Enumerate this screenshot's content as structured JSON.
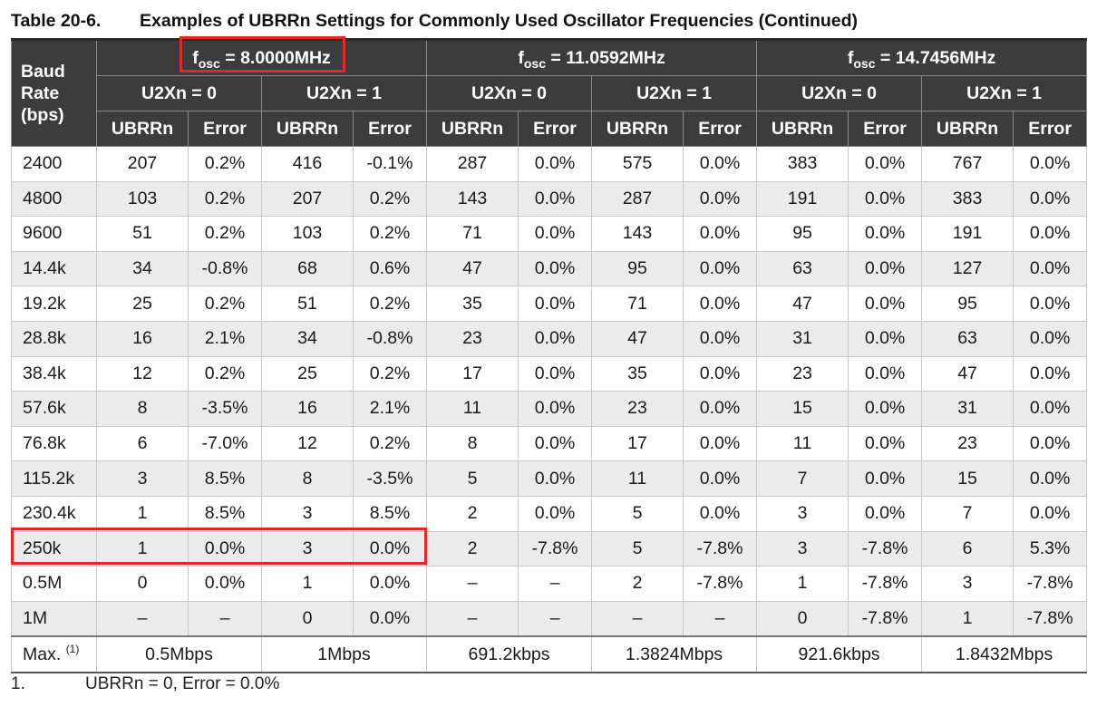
{
  "caption": {
    "number": "Table 20-6.",
    "title": "Examples of UBRRn Settings for Commonly Used Oscillator Frequencies (Continued)"
  },
  "header": {
    "baud_label": [
      "Baud",
      "Rate",
      "(bps)"
    ],
    "freqs": [
      {
        "prefix": "f",
        "sub": "osc",
        "value": " = 8.0000MHz"
      },
      {
        "prefix": "f",
        "sub": "osc",
        "value": " = 11.0592MHz"
      },
      {
        "prefix": "f",
        "sub": "osc",
        "value": " = 14.7456MHz"
      }
    ],
    "modes": [
      "U2Xn = 0",
      "U2Xn = 1",
      "U2Xn = 0",
      "U2Xn = 1",
      "U2Xn = 0",
      "U2Xn = 1"
    ],
    "cols": [
      "UBRRn",
      "Error",
      "UBRRn",
      "Error",
      "UBRRn",
      "Error",
      "UBRRn",
      "Error",
      "UBRRn",
      "Error",
      "UBRRn",
      "Error"
    ]
  },
  "rows": [
    [
      "2400",
      "207",
      "0.2%",
      "416",
      "-0.1%",
      "287",
      "0.0%",
      "575",
      "0.0%",
      "383",
      "0.0%",
      "767",
      "0.0%"
    ],
    [
      "4800",
      "103",
      "0.2%",
      "207",
      "0.2%",
      "143",
      "0.0%",
      "287",
      "0.0%",
      "191",
      "0.0%",
      "383",
      "0.0%"
    ],
    [
      "9600",
      "51",
      "0.2%",
      "103",
      "0.2%",
      "71",
      "0.0%",
      "143",
      "0.0%",
      "95",
      "0.0%",
      "191",
      "0.0%"
    ],
    [
      "14.4k",
      "34",
      "-0.8%",
      "68",
      "0.6%",
      "47",
      "0.0%",
      "95",
      "0.0%",
      "63",
      "0.0%",
      "127",
      "0.0%"
    ],
    [
      "19.2k",
      "25",
      "0.2%",
      "51",
      "0.2%",
      "35",
      "0.0%",
      "71",
      "0.0%",
      "47",
      "0.0%",
      "95",
      "0.0%"
    ],
    [
      "28.8k",
      "16",
      "2.1%",
      "34",
      "-0.8%",
      "23",
      "0.0%",
      "47",
      "0.0%",
      "31",
      "0.0%",
      "63",
      "0.0%"
    ],
    [
      "38.4k",
      "12",
      "0.2%",
      "25",
      "0.2%",
      "17",
      "0.0%",
      "35",
      "0.0%",
      "23",
      "0.0%",
      "47",
      "0.0%"
    ],
    [
      "57.6k",
      "8",
      "-3.5%",
      "16",
      "2.1%",
      "11",
      "0.0%",
      "23",
      "0.0%",
      "15",
      "0.0%",
      "31",
      "0.0%"
    ],
    [
      "76.8k",
      "6",
      "-7.0%",
      "12",
      "0.2%",
      "8",
      "0.0%",
      "17",
      "0.0%",
      "11",
      "0.0%",
      "23",
      "0.0%"
    ],
    [
      "115.2k",
      "3",
      "8.5%",
      "8",
      "-3.5%",
      "5",
      "0.0%",
      "11",
      "0.0%",
      "7",
      "0.0%",
      "15",
      "0.0%"
    ],
    [
      "230.4k",
      "1",
      "8.5%",
      "3",
      "8.5%",
      "2",
      "0.0%",
      "5",
      "0.0%",
      "3",
      "0.0%",
      "7",
      "0.0%"
    ],
    [
      "250k",
      "1",
      "0.0%",
      "3",
      "0.0%",
      "2",
      "-7.8%",
      "5",
      "-7.8%",
      "3",
      "-7.8%",
      "6",
      "5.3%"
    ],
    [
      "0.5M",
      "0",
      "0.0%",
      "1",
      "0.0%",
      "–",
      "–",
      "2",
      "-7.8%",
      "1",
      "-7.8%",
      "3",
      "-7.8%"
    ],
    [
      "1M",
      "–",
      "–",
      "0",
      "0.0%",
      "–",
      "–",
      "–",
      "–",
      "0",
      "-7.8%",
      "1",
      "-7.8%"
    ]
  ],
  "max_row": {
    "label": "Max.",
    "ref": "(1)",
    "values": [
      "0.5Mbps",
      "1Mbps",
      "691.2kbps",
      "1.3824Mbps",
      "921.6kbps",
      "1.8432Mbps"
    ]
  },
  "footnote": {
    "number": "1.",
    "text": "UBRRn = 0, Error = 0.0%"
  },
  "highlight_color": "#e0282a",
  "header_bg": "#3c3c3c",
  "stripe_bg": "#ebebeb"
}
